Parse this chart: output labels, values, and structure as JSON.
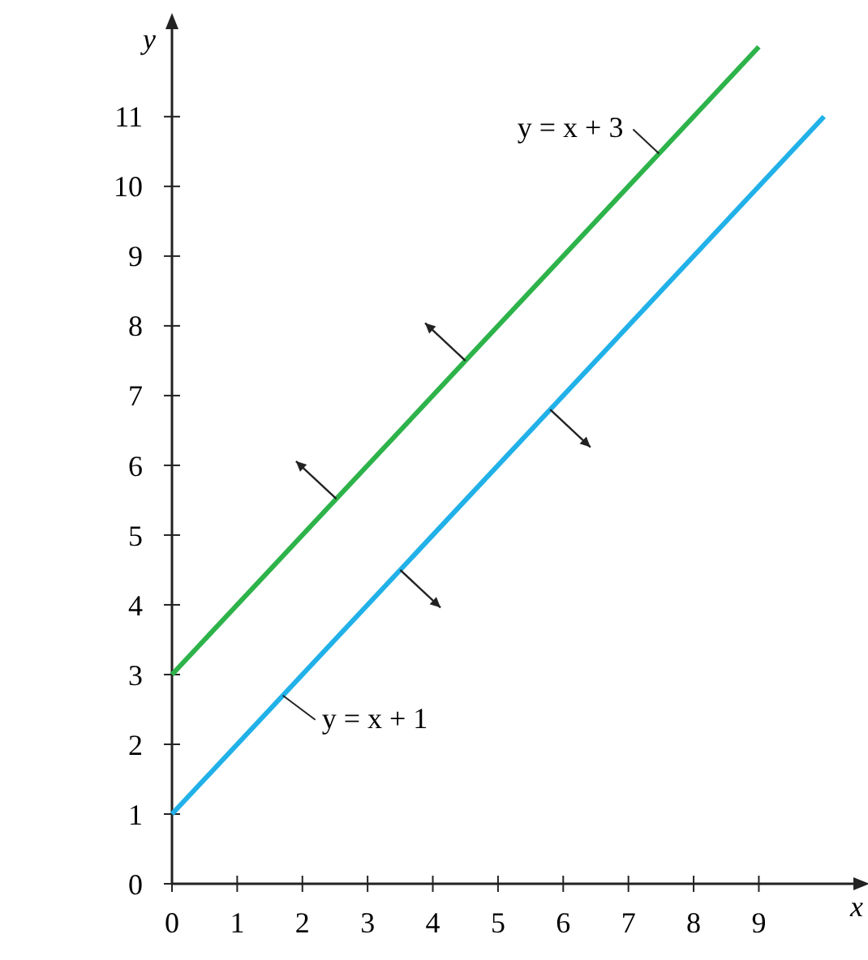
{
  "chart_data": {
    "type": "line",
    "xlabel": "x",
    "ylabel": "y",
    "xlim": [
      0,
      10.5
    ],
    "ylim": [
      0,
      12.3
    ],
    "xticks": [
      0,
      1,
      2,
      3,
      4,
      5,
      6,
      7,
      8,
      9
    ],
    "yticks": [
      0,
      1,
      2,
      3,
      4,
      5,
      6,
      7,
      8,
      9,
      10,
      11
    ],
    "grid": false,
    "marker": "none",
    "line_style": "solid",
    "series": [
      {
        "name": "y = x + 3",
        "color": "#2db34a",
        "x": [
          0,
          9
        ],
        "values": [
          3,
          12
        ]
      },
      {
        "name": "y = x + 1",
        "color": "#21b1e8",
        "x": [
          0,
          10
        ],
        "values": [
          1,
          11
        ]
      }
    ]
  }
}
